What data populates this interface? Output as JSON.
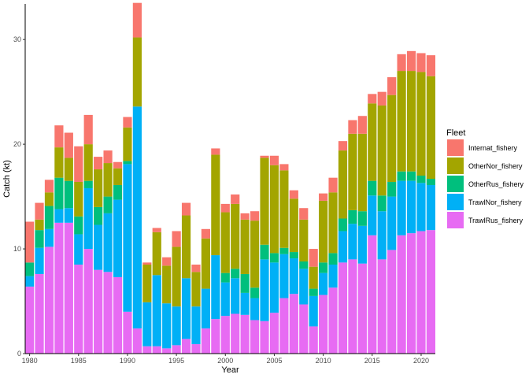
{
  "chart_data": {
    "type": "bar",
    "stacked": true,
    "xlabel": "Year",
    "ylabel": "Catch (kt)",
    "legend_title": "Fleet",
    "legend_position": "right",
    "grid": false,
    "xlim": [
      1979.55,
      2021.45
    ],
    "ylim": [
      0,
      33.4
    ],
    "x_ticks": [
      1980,
      1985,
      1990,
      1995,
      2000,
      2005,
      2010,
      2015,
      2020
    ],
    "y_ticks": [
      0,
      10,
      20,
      30
    ],
    "categories": [
      1980,
      1981,
      1982,
      1983,
      1984,
      1985,
      1986,
      1987,
      1988,
      1989,
      1990,
      1991,
      1992,
      1993,
      1994,
      1995,
      1996,
      1997,
      1998,
      1999,
      2000,
      2001,
      2002,
      2003,
      2004,
      2005,
      2006,
      2007,
      2008,
      2009,
      2010,
      2011,
      2012,
      2013,
      2014,
      2015,
      2016,
      2017,
      2018,
      2019,
      2020,
      2021
    ],
    "series": [
      {
        "name": "TrawlRus_fishery",
        "color": "#E76BF3",
        "values": [
          6.4,
          7.6,
          10.2,
          12.5,
          12.5,
          8.5,
          10.0,
          8.0,
          7.8,
          7.3,
          4.0,
          2.4,
          0.7,
          0.7,
          0.5,
          0.8,
          1.4,
          0.9,
          2.4,
          3.3,
          3.6,
          3.8,
          3.7,
          3.2,
          3.1,
          3.9,
          5.3,
          5.7,
          4.7,
          2.6,
          5.6,
          6.3,
          8.7,
          9.0,
          8.6,
          11.3,
          9.0,
          9.9,
          11.3,
          11.5,
          11.7,
          11.8
        ]
      },
      {
        "name": "TrawlNor_fishery",
        "color": "#00B0F6",
        "values": [
          1.0,
          2.5,
          1.7,
          1.3,
          1.4,
          2.9,
          5.8,
          4.3,
          5.6,
          7.4,
          14.1,
          21.2,
          4.2,
          6.8,
          4.3,
          3.7,
          5.8,
          3.6,
          3.8,
          6.1,
          3.2,
          3.4,
          2.1,
          2.1,
          5.9,
          4.8,
          4.2,
          3.4,
          3.4,
          2.9,
          2.1,
          2.2,
          3.0,
          3.4,
          3.6,
          3.8,
          4.6,
          5.1,
          5.2,
          5.0,
          4.6,
          4.3
        ]
      },
      {
        "name": "OtherRus_fishery",
        "color": "#00BF7D",
        "values": [
          1.3,
          1.7,
          2.2,
          3.0,
          2.6,
          1.7,
          0.7,
          1.7,
          1.6,
          1.4,
          0.3,
          0.0,
          0.0,
          0.0,
          0.0,
          0.0,
          0.0,
          0.0,
          0.0,
          0.0,
          0.9,
          0.9,
          1.8,
          1.0,
          1.4,
          0.9,
          0.6,
          0.6,
          0.7,
          0.7,
          1.0,
          1.1,
          1.2,
          1.3,
          1.4,
          1.4,
          1.5,
          1.4,
          0.9,
          0.9,
          0.7,
          0.6
        ]
      },
      {
        "name": "OtherNor_fishery",
        "color": "#A3A500",
        "values": [
          0.0,
          1.0,
          1.3,
          2.9,
          2.2,
          3.3,
          3.5,
          3.6,
          3.2,
          1.6,
          3.2,
          6.6,
          3.6,
          4.1,
          3.6,
          5.7,
          6.0,
          3.3,
          4.8,
          9.6,
          5.8,
          6.2,
          5.2,
          6.4,
          8.3,
          8.4,
          7.4,
          5.1,
          4.0,
          2.1,
          5.9,
          5.8,
          6.5,
          7.3,
          7.4,
          7.4,
          8.6,
          8.3,
          9.6,
          9.6,
          9.9,
          9.8
        ]
      },
      {
        "name": "Internat_fishery",
        "color": "#F8766D",
        "values": [
          3.9,
          1.6,
          1.2,
          2.1,
          2.4,
          3.4,
          2.8,
          1.2,
          1.2,
          0.6,
          1.0,
          3.3,
          0.2,
          0.4,
          0.8,
          1.5,
          1.2,
          0.7,
          0.9,
          0.6,
          0.8,
          0.9,
          0.6,
          0.9,
          0.2,
          0.9,
          0.6,
          0.8,
          1.1,
          1.7,
          0.7,
          1.4,
          0.9,
          1.3,
          1.7,
          0.9,
          1.3,
          1.7,
          1.6,
          1.9,
          1.8,
          2.0
        ]
      }
    ],
    "legend_order": [
      "Internat_fishery",
      "OtherNor_fishery",
      "OtherRus_fishery",
      "TrawlNor_fishery",
      "TrawlRus_fishery"
    ]
  }
}
